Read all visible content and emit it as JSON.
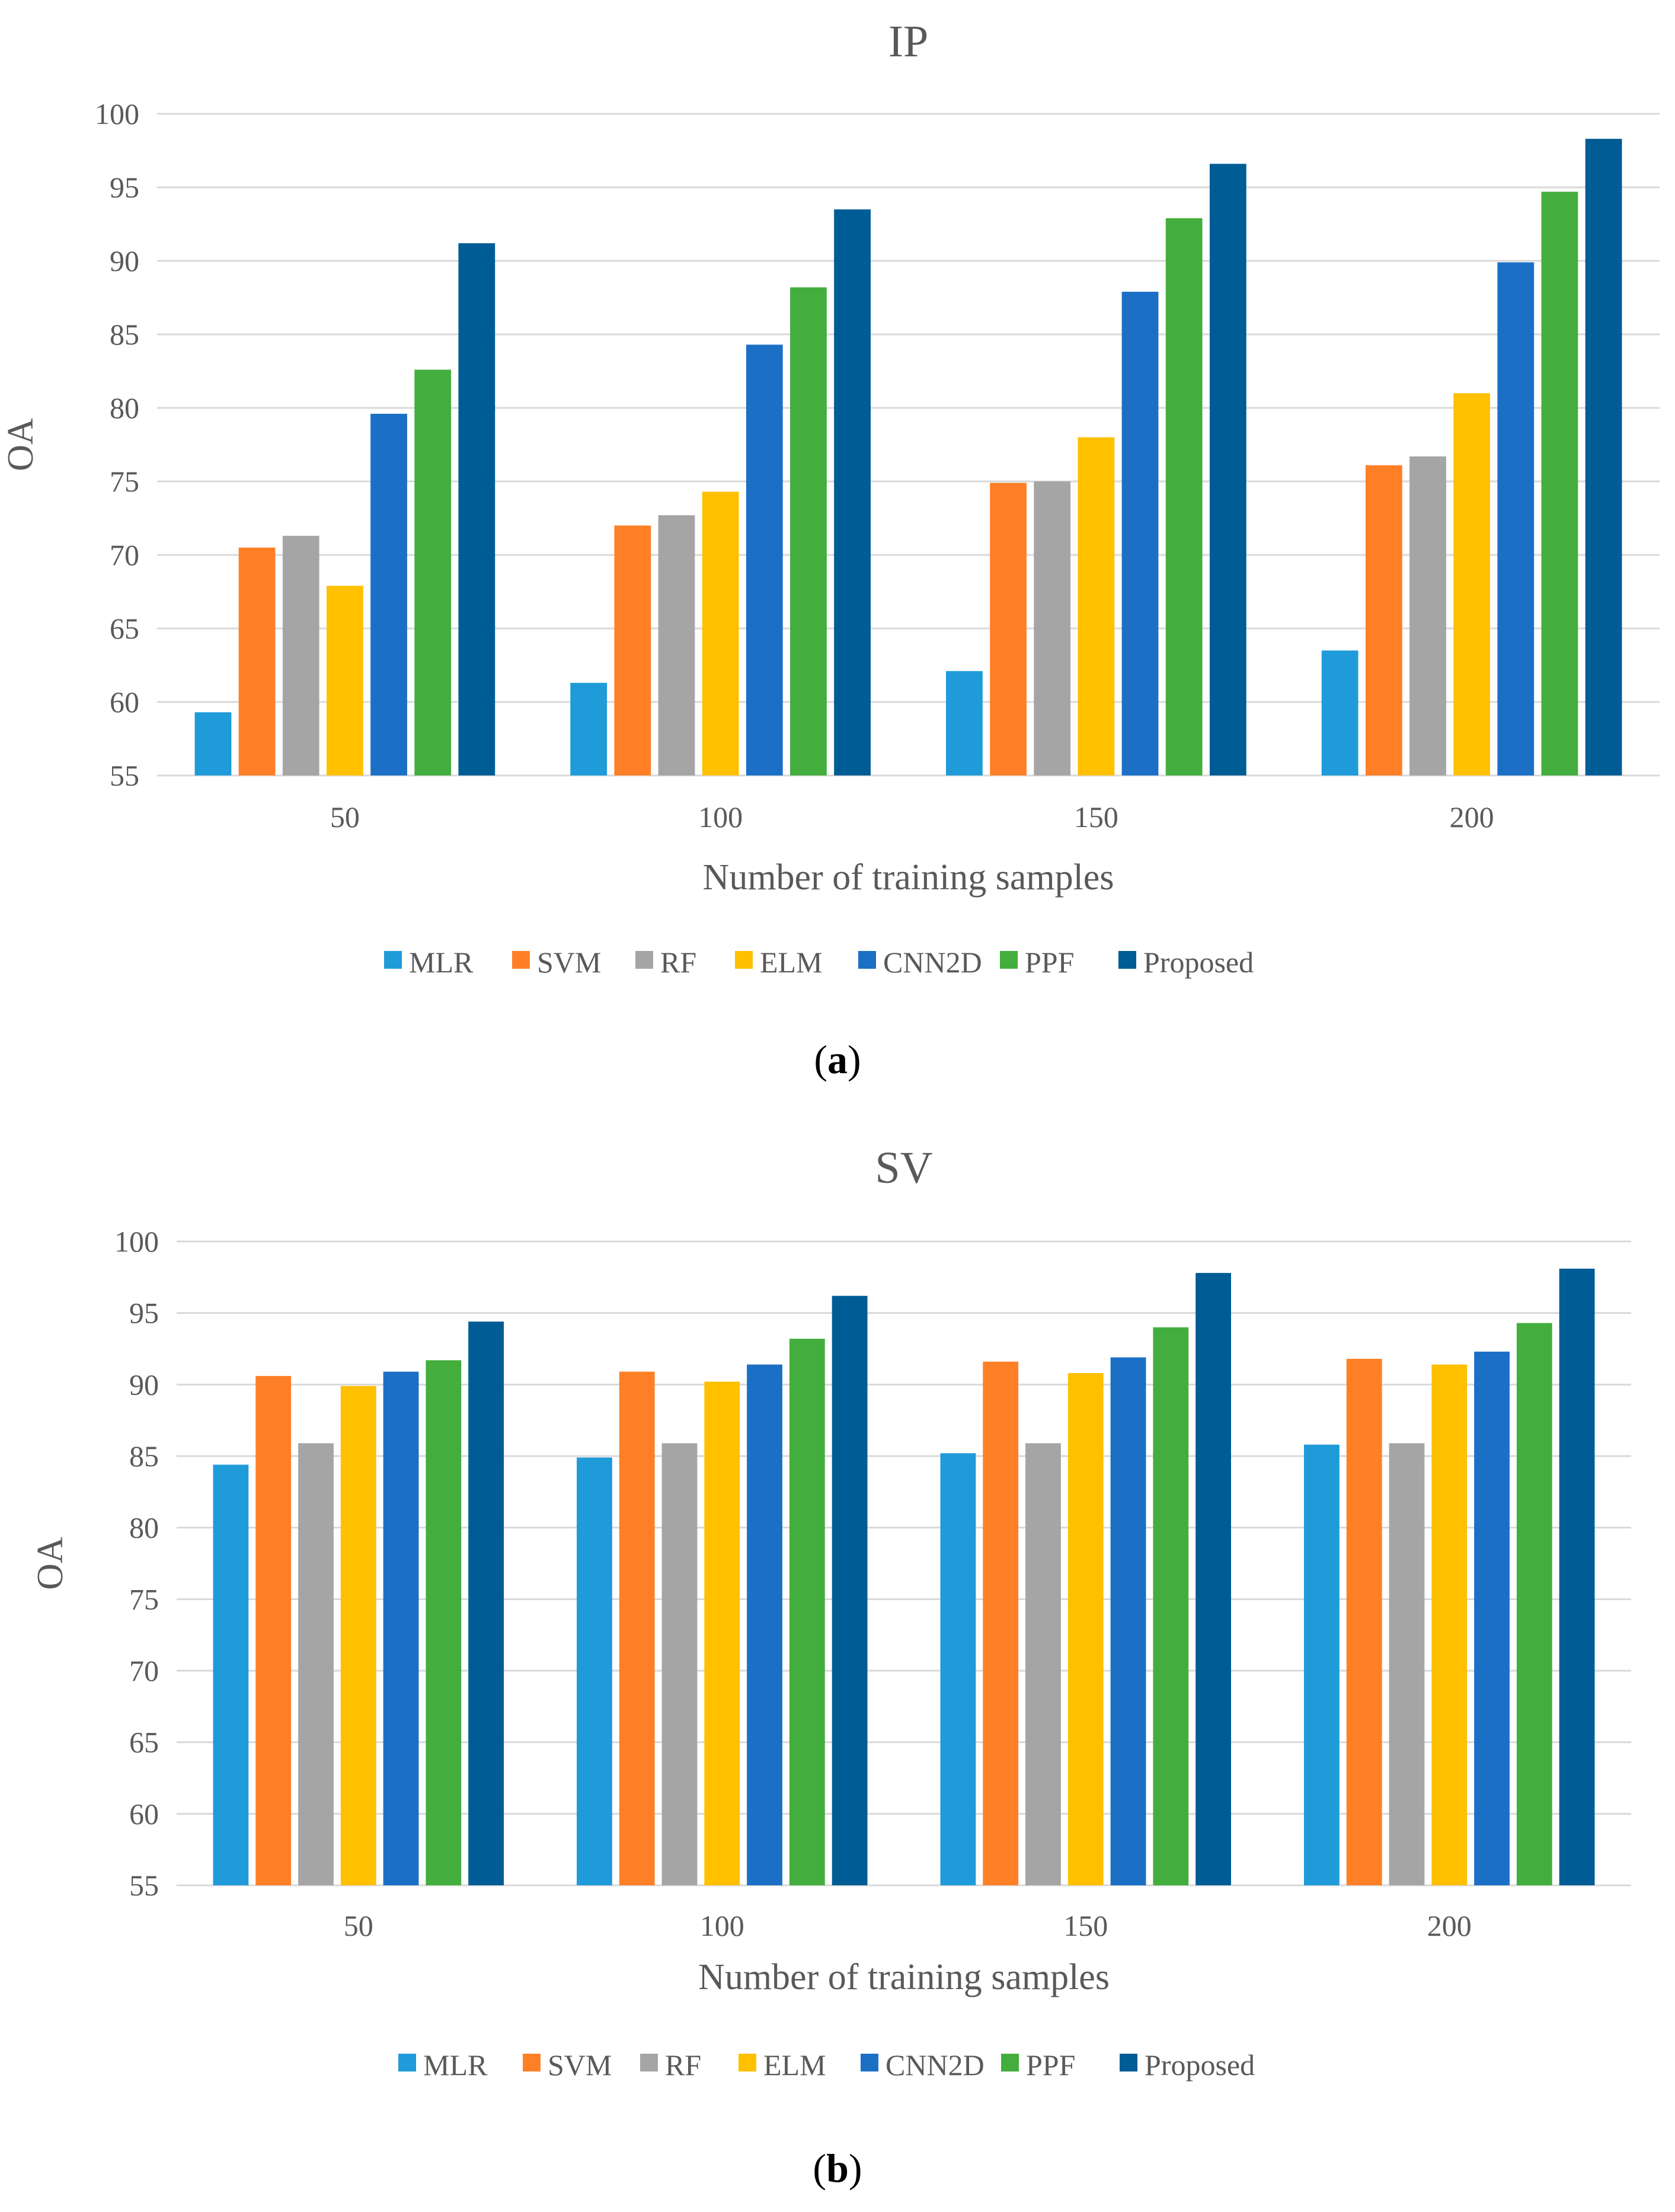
{
  "chart_data": [
    {
      "type": "bar",
      "title": "IP",
      "xlabel": "Number of training samples",
      "ylabel": "OA",
      "ylim": [
        55,
        100
      ],
      "yticks": [
        55,
        60,
        65,
        70,
        75,
        80,
        85,
        90,
        95,
        100
      ],
      "categories": [
        "50",
        "100",
        "150",
        "200"
      ],
      "grid": true,
      "legend_position": "bottom",
      "caption": {
        "open": "(",
        "letter": "a",
        "close": ")"
      },
      "series": [
        {
          "name": "MLR",
          "color": "#1F9BD9",
          "values": [
            59.3,
            61.3,
            62.1,
            63.5
          ]
        },
        {
          "name": "SVM",
          "color": "#FF7F27",
          "values": [
            70.5,
            72.0,
            74.9,
            76.1
          ]
        },
        {
          "name": "RF",
          "color": "#A5A5A5",
          "values": [
            71.3,
            72.7,
            75.0,
            76.7
          ]
        },
        {
          "name": "ELM",
          "color": "#FFC000",
          "values": [
            67.9,
            74.3,
            78.0,
            81.0
          ]
        },
        {
          "name": "CNN2D",
          "color": "#1B70C6",
          "values": [
            79.6,
            84.3,
            87.9,
            89.9
          ]
        },
        {
          "name": "PPF",
          "color": "#43AE3E",
          "values": [
            82.6,
            88.2,
            92.9,
            94.7
          ]
        },
        {
          "name": "Proposed",
          "color": "#005C94",
          "values": [
            91.2,
            93.5,
            96.6,
            98.3
          ]
        }
      ]
    },
    {
      "type": "bar",
      "title": "SV",
      "xlabel": "Number of training samples",
      "ylabel": "OA",
      "ylim": [
        55,
        100
      ],
      "yticks": [
        55,
        60,
        65,
        70,
        75,
        80,
        85,
        90,
        95,
        100
      ],
      "categories": [
        "50",
        "100",
        "150",
        "200"
      ],
      "grid": true,
      "legend_position": "bottom",
      "caption": {
        "open": "(",
        "letter": "b",
        "close": ")"
      },
      "series": [
        {
          "name": "MLR",
          "color": "#1F9BD9",
          "values": [
            84.4,
            84.9,
            85.2,
            85.8
          ]
        },
        {
          "name": "SVM",
          "color": "#FF7F27",
          "values": [
            90.6,
            90.9,
            91.6,
            91.8
          ]
        },
        {
          "name": "RF",
          "color": "#A5A5A5",
          "values": [
            85.9,
            85.9,
            85.9,
            85.9
          ]
        },
        {
          "name": "ELM",
          "color": "#FFC000",
          "values": [
            89.9,
            90.2,
            90.8,
            91.4
          ]
        },
        {
          "name": "CNN2D",
          "color": "#1B70C6",
          "values": [
            90.9,
            91.4,
            91.9,
            92.3
          ]
        },
        {
          "name": "PPF",
          "color": "#43AE3E",
          "values": [
            91.7,
            93.2,
            94.0,
            94.3
          ]
        },
        {
          "name": "Proposed",
          "color": "#005C94",
          "values": [
            94.4,
            96.2,
            97.8,
            98.1
          ]
        }
      ]
    }
  ]
}
